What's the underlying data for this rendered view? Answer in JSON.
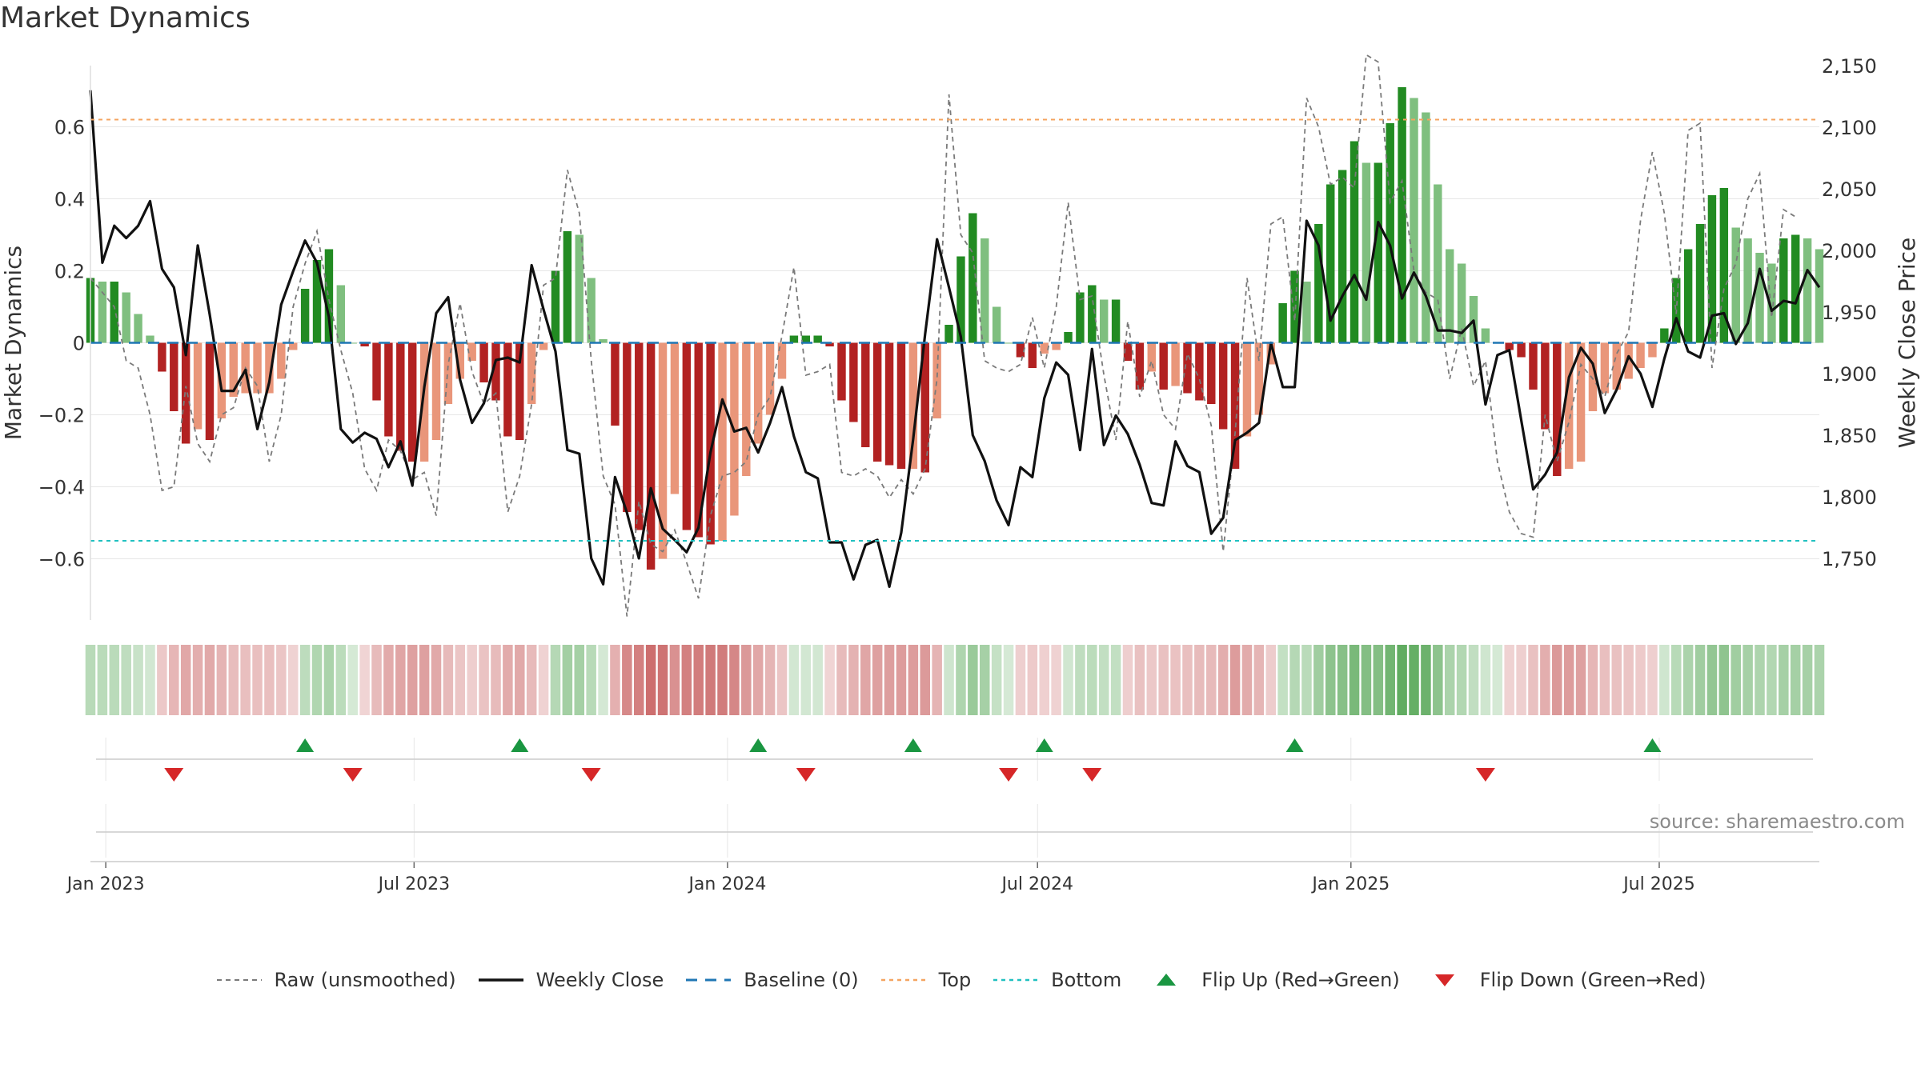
{
  "title": "Market Dynamics",
  "source": "source: sharemaestro.com",
  "legend": [
    {
      "label": "Raw (unsmoothed)",
      "kind": "dash-gray"
    },
    {
      "label": "Weekly Close",
      "kind": "solid-black"
    },
    {
      "label": "Baseline (0)",
      "kind": "dash-blue"
    },
    {
      "label": "Top",
      "kind": "dot-orange"
    },
    {
      "label": "Bottom",
      "kind": "dot-cyan"
    },
    {
      "label": "Flip Up (Red→Green)",
      "kind": "tri-up"
    },
    {
      "label": "Flip Down (Green→Red)",
      "kind": "tri-down"
    }
  ],
  "colors": {
    "green_strong": "#228B22",
    "green_light": "#7fbf7f",
    "red_strong": "#b22222",
    "red_light": "#e9967a",
    "raw": "#7a7a7a",
    "close": "#111111",
    "baseline": "#1f77b4",
    "top": "#f4a460",
    "bottom": "#20c0c0",
    "flip_up": "#1a9641",
    "flip_down": "#d62728"
  },
  "chart_data": {
    "type": "bar",
    "ylabel": "Market Dynamics",
    "y2label": "Weekly Close Price",
    "ylim": [
      -0.77,
      0.77
    ],
    "y2lim": [
      1700,
      2150
    ],
    "yticks": [
      {
        "v": 0.6,
        "label": "0.6"
      },
      {
        "v": 0.4,
        "label": "0.4"
      },
      {
        "v": 0.2,
        "label": "0.2"
      },
      {
        "v": 0,
        "label": "0"
      },
      {
        "v": -0.2,
        "label": "−0.2"
      },
      {
        "v": -0.4,
        "label": "−0.4"
      },
      {
        "v": -0.6,
        "label": "−0.6"
      }
    ],
    "y2ticks": [
      {
        "v": 2150,
        "label": "2,150"
      },
      {
        "v": 2100,
        "label": "2,100"
      },
      {
        "v": 2050,
        "label": "2,050"
      },
      {
        "v": 2000,
        "label": "2,000"
      },
      {
        "v": 1950,
        "label": "1,950"
      },
      {
        "v": 1900,
        "label": "1,900"
      },
      {
        "v": 1850,
        "label": "1,850"
      },
      {
        "v": 1800,
        "label": "1,800"
      },
      {
        "v": 1750,
        "label": "1,750"
      }
    ],
    "xticks": [
      {
        "date": "2023-01-01",
        "label": "Jan 2023"
      },
      {
        "date": "2023-07-01",
        "label": "Jul 2023"
      },
      {
        "date": "2024-01-01",
        "label": "Jan 2024"
      },
      {
        "date": "2024-07-01",
        "label": "Jul 2024"
      },
      {
        "date": "2025-01-01",
        "label": "Jan 2025"
      },
      {
        "date": "2025-07-01",
        "label": "Jul 2025"
      }
    ],
    "first_week": "2022-12-23",
    "top": 0.62,
    "bottom": -0.55,
    "baseline": 0,
    "grid": true,
    "legend_position": "bottom",
    "histogram": [
      0.18,
      0.17,
      0.17,
      0.14,
      0.08,
      0.02,
      -0.08,
      -0.19,
      -0.28,
      -0.24,
      -0.27,
      -0.21,
      -0.15,
      -0.14,
      -0.14,
      -0.14,
      -0.1,
      -0.02,
      0.15,
      0.23,
      0.26,
      0.16,
      0.0,
      -0.01,
      -0.16,
      -0.26,
      -0.3,
      -0.33,
      -0.33,
      -0.27,
      -0.17,
      -0.1,
      -0.05,
      -0.11,
      -0.16,
      -0.26,
      -0.27,
      -0.17,
      -0.02,
      0.2,
      0.31,
      0.3,
      0.18,
      0.01,
      -0.23,
      -0.47,
      -0.52,
      -0.63,
      -0.6,
      -0.42,
      -0.52,
      -0.54,
      -0.56,
      -0.55,
      -0.48,
      -0.37,
      -0.28,
      -0.2,
      -0.1,
      0.02,
      0.02,
      0.02,
      -0.01,
      -0.16,
      -0.22,
      -0.29,
      -0.33,
      -0.34,
      -0.35,
      -0.35,
      -0.36,
      -0.21,
      0.05,
      0.24,
      0.36,
      0.29,
      0.1,
      0.0,
      -0.04,
      -0.07,
      -0.03,
      -0.02,
      0.03,
      0.14,
      0.16,
      0.12,
      0.12,
      -0.05,
      -0.13,
      -0.08,
      -0.13,
      -0.12,
      -0.14,
      -0.16,
      -0.17,
      -0.24,
      -0.35,
      -0.26,
      -0.2,
      -0.06,
      0.11,
      0.2,
      0.17,
      0.33,
      0.44,
      0.48,
      0.56,
      0.5,
      0.5,
      0.61,
      0.71,
      0.68,
      0.64,
      0.44,
      0.26,
      0.22,
      0.13,
      0.04,
      0.0,
      -0.02,
      -0.04,
      -0.13,
      -0.24,
      -0.37,
      -0.35,
      -0.33,
      -0.19,
      -0.14,
      -0.13,
      -0.1,
      -0.07,
      -0.04,
      0.04,
      0.18,
      0.26,
      0.33,
      0.41,
      0.43,
      0.32,
      0.29,
      0.25,
      0.22,
      0.29,
      0.3,
      0.29,
      0.26
    ],
    "raw": [
      0.18,
      0.14,
      0.1,
      -0.05,
      -0.07,
      -0.2,
      -0.41,
      -0.4,
      -0.12,
      -0.28,
      -0.33,
      -0.2,
      -0.18,
      -0.07,
      -0.12,
      -0.33,
      -0.2,
      0.1,
      0.22,
      0.31,
      0.12,
      -0.02,
      -0.14,
      -0.35,
      -0.41,
      -0.27,
      -0.3,
      -0.38,
      -0.36,
      -0.48,
      -0.06,
      0.11,
      -0.08,
      -0.17,
      -0.14,
      -0.47,
      -0.37,
      -0.17,
      0.16,
      0.18,
      0.48,
      0.36,
      -0.05,
      -0.37,
      -0.45,
      -0.76,
      -0.44,
      -0.56,
      -0.58,
      -0.52,
      -0.61,
      -0.71,
      -0.48,
      -0.37,
      -0.36,
      -0.33,
      -0.2,
      -0.15,
      0.02,
      0.21,
      -0.09,
      -0.08,
      -0.06,
      -0.36,
      -0.37,
      -0.35,
      -0.37,
      -0.43,
      -0.38,
      -0.42,
      -0.35,
      -0.1,
      0.69,
      0.3,
      0.25,
      -0.05,
      -0.07,
      -0.08,
      -0.06,
      0.07,
      -0.07,
      0.1,
      0.39,
      0.12,
      0.13,
      -0.09,
      -0.27,
      0.06,
      -0.15,
      -0.05,
      -0.2,
      -0.24,
      -0.03,
      -0.1,
      -0.23,
      -0.58,
      -0.25,
      0.18,
      -0.05,
      0.33,
      0.35,
      0.06,
      0.68,
      0.6,
      0.44,
      0.46,
      0.43,
      0.8,
      0.78,
      0.39,
      0.45,
      0.2,
      0.14,
      0.12,
      -0.1,
      0.04,
      -0.12,
      -0.05,
      -0.33,
      -0.47,
      -0.53,
      -0.54,
      -0.2,
      -0.33,
      -0.22,
      -0.06,
      -0.1,
      -0.15,
      -0.03,
      0.03,
      0.34,
      0.53,
      0.36,
      0.08,
      0.59,
      0.61,
      -0.07,
      0.15,
      0.22,
      0.4,
      0.47,
      0.07,
      0.37,
      0.35
    ],
    "close": [
      2130,
      1990,
      2020,
      2010,
      2020,
      2040,
      1985,
      1970,
      1915,
      2004,
      1948,
      1886,
      1886,
      1903,
      1855,
      1893,
      1956,
      1983,
      2008,
      1990,
      1946,
      1855,
      1844,
      1852,
      1847,
      1824,
      1845,
      1809,
      1889,
      1949,
      1962,
      1895,
      1860,
      1876,
      1911,
      1913,
      1909,
      1988,
      1952,
      1918,
      1838,
      1835,
      1750,
      1729,
      1816,
      1787,
      1750,
      1807,
      1774,
      1765,
      1755,
      1775,
      1836,
      1879,
      1853,
      1856,
      1836,
      1860,
      1889,
      1849,
      1820,
      1815,
      1763,
      1763,
      1733,
      1761,
      1765,
      1727,
      1771,
      1847,
      1932,
      2009,
      1970,
      1930,
      1850,
      1829,
      1797,
      1777,
      1824,
      1816,
      1880,
      1909,
      1899,
      1838,
      1920,
      1842,
      1866,
      1851,
      1826,
      1795,
      1793,
      1845,
      1825,
      1820,
      1770,
      1783,
      1846,
      1852,
      1860,
      1925,
      1889,
      1889,
      2024,
      2004,
      1943,
      1963,
      1980,
      1960,
      2023,
      2004,
      1961,
      1982,
      1963,
      1935,
      1935,
      1933,
      1943,
      1875,
      1915,
      1919,
      1862,
      1806,
      1818,
      1836,
      1897,
      1921,
      1908,
      1868,
      1887,
      1914,
      1900,
      1873,
      1912,
      1945,
      1918,
      1913,
      1947,
      1949,
      1924,
      1941,
      1985,
      1951,
      1959,
      1957,
      1984,
      1970
    ],
    "flips_up": [
      "2023-04-28",
      "2023-09-01",
      "2024-01-19",
      "2024-04-19",
      "2024-07-05",
      "2024-11-29",
      "2025-06-27"
    ],
    "flips_down": [
      "2023-02-10",
      "2023-05-26",
      "2023-10-13",
      "2024-02-16",
      "2024-06-14",
      "2024-08-02",
      "2025-03-21"
    ]
  }
}
